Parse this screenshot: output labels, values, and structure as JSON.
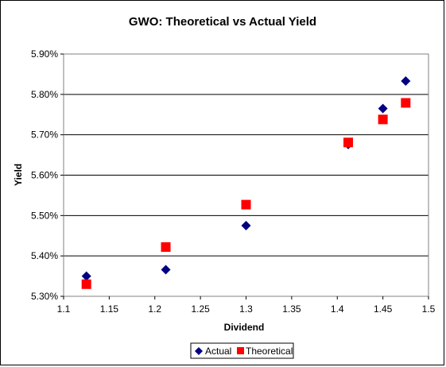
{
  "chart_data": {
    "type": "scatter",
    "title": "GWO: Theoretical vs Actual Yield",
    "xlabel": "Dividend",
    "ylabel": "Yield",
    "xlim": [
      1.1,
      1.5
    ],
    "ylim": [
      5.3,
      5.9
    ],
    "x_ticks": [
      "1.1",
      "1.15",
      "1.2",
      "1.25",
      "1.3",
      "1.35",
      "1.4",
      "1.45",
      "1.5"
    ],
    "y_ticks": [
      "5.30%",
      "5.40%",
      "5.50%",
      "5.60%",
      "5.70%",
      "5.80%",
      "5.90%"
    ],
    "grid": "horizontal",
    "legend_position": "bottom",
    "series": [
      {
        "name": "Actual",
        "marker": "diamond",
        "color": "#000080",
        "points": [
          {
            "x": 1.125,
            "y": 5.35
          },
          {
            "x": 1.212,
            "y": 5.366
          },
          {
            "x": 1.3,
            "y": 5.475
          },
          {
            "x": 1.412,
            "y": 5.676
          },
          {
            "x": 1.45,
            "y": 5.765
          },
          {
            "x": 1.475,
            "y": 5.833
          }
        ]
      },
      {
        "name": "Theoretical",
        "marker": "square",
        "color": "#ff0000",
        "points": [
          {
            "x": 1.125,
            "y": 5.33
          },
          {
            "x": 1.212,
            "y": 5.422
          },
          {
            "x": 1.3,
            "y": 5.527
          },
          {
            "x": 1.412,
            "y": 5.681
          },
          {
            "x": 1.45,
            "y": 5.738
          },
          {
            "x": 1.475,
            "y": 5.779
          }
        ]
      }
    ]
  }
}
